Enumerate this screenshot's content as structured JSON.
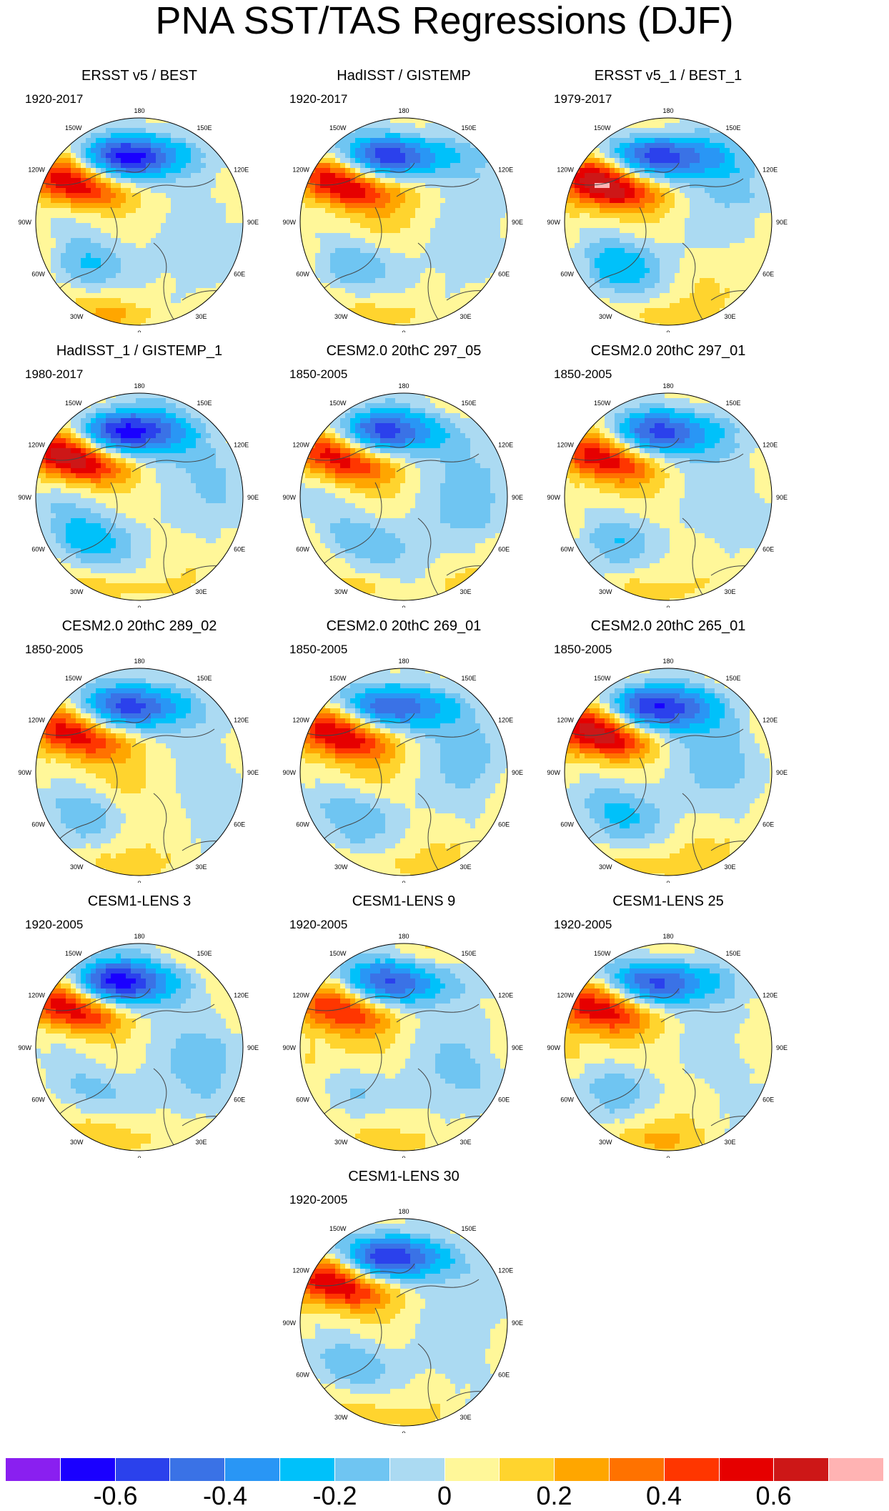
{
  "title": "PNA SST/TAS Regressions (DJF)",
  "panels": [
    {
      "title": "ERSST v5 / BEST",
      "years": "1920-2017",
      "variant": 0,
      "strength": 1.0
    },
    {
      "title": "HadISST / GISTEMP",
      "years": "1920-2017",
      "variant": 1,
      "strength": 1.0
    },
    {
      "title": "ERSST v5_1 / BEST_1",
      "years": "1979-2017",
      "variant": 2,
      "strength": 1.05
    },
    {
      "title": "HadISST_1 / GISTEMP_1",
      "years": "1980-2017",
      "variant": 3,
      "strength": 1.05
    },
    {
      "title": "CESM2.0 20thC 297_05",
      "years": "1850-2005",
      "variant": 4,
      "strength": 0.9
    },
    {
      "title": "CESM2.0 20thC 297_01",
      "years": "1850-2005",
      "variant": 5,
      "strength": 0.85
    },
    {
      "title": "CESM2.0 20thC 289_02",
      "years": "1850-2005",
      "variant": 6,
      "strength": 0.85
    },
    {
      "title": "CESM2.0 20thC 269_01",
      "years": "1850-2005",
      "variant": 7,
      "strength": 0.85
    },
    {
      "title": "CESM2.0 20thC 265_01",
      "years": "1850-2005",
      "variant": 8,
      "strength": 0.95
    },
    {
      "title": "CESM1-LENS 3",
      "years": "1920-2005",
      "variant": 9,
      "strength": 0.95
    },
    {
      "title": "CESM1-LENS 9",
      "years": "1920-2005",
      "variant": 10,
      "strength": 0.8
    },
    {
      "title": "CESM1-LENS 25",
      "years": "1920-2005",
      "variant": 11,
      "strength": 0.85
    },
    {
      "title": "CESM1-LENS 30",
      "years": "1920-2005",
      "variant": 12,
      "strength": 0.95
    }
  ],
  "map_labels": {
    "top": "180",
    "bottom": "0",
    "left": "90W",
    "right": "90E",
    "upper_left": "150W",
    "upper_right": "150E",
    "mid_upper_left": "120W",
    "mid_upper_right": "120E",
    "lower_left": "60W",
    "lower_right": "60E",
    "bottom_left": "30W",
    "bottom_right": "30E"
  },
  "colorbar": {
    "colors": [
      "#8a1ff0",
      "#1a00ff",
      "#2b41ec",
      "#3a72e6",
      "#2996f5",
      "#00c1fa",
      "#6fc5f2",
      "#abdaf2",
      "#fff799",
      "#ffd42e",
      "#ffa600",
      "#ff7200",
      "#ff3600",
      "#e60000",
      "#cd1717",
      "#ffb3b3"
    ],
    "ticks": [
      "-0.6",
      "-0.4",
      "-0.2",
      "0",
      "0.2",
      "0.4",
      "0.6"
    ],
    "tick_values": [
      -0.6,
      -0.4,
      -0.2,
      0,
      0.2,
      0.4,
      0.6
    ],
    "min": -0.8,
    "max": 0.8
  }
}
